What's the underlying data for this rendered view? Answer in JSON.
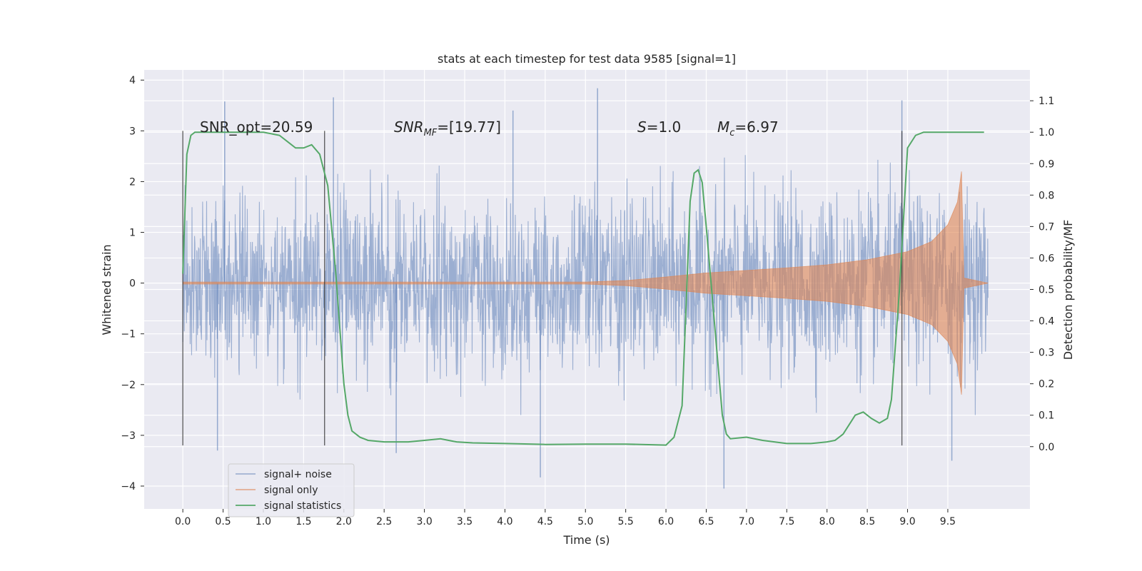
{
  "chart_data": {
    "type": "line",
    "title": "stats at each timestep for test data 9585 [signal=1]",
    "xlabel": "Time (s)",
    "ylabel_left": "Whitened strain",
    "ylabel_right": "Detection probability/MF",
    "xlim": [
      -0.48,
      10.52
    ],
    "ylim_left": [
      -4.45,
      4.2
    ],
    "ylim_right": [
      -0.198,
      1.198
    ],
    "x_ticks": [
      "0.0",
      "0.5",
      "1.0",
      "1.5",
      "2.0",
      "2.5",
      "3.0",
      "3.5",
      "4.0",
      "4.5",
      "5.0",
      "5.5",
      "6.0",
      "6.5",
      "7.0",
      "7.5",
      "8.0",
      "8.5",
      "9.0",
      "9.5"
    ],
    "y_left_ticks": [
      "4",
      "3",
      "2",
      "1",
      "0",
      "−1",
      "−2",
      "−3",
      "−4"
    ],
    "y_right_ticks": [
      "1.1",
      "1.0",
      "0.9",
      "0.8",
      "0.7",
      "0.6",
      "0.5",
      "0.4",
      "0.3",
      "0.2",
      "0.1",
      "0.0"
    ],
    "grid": true,
    "background": "#eaeaf2",
    "annotations": {
      "snr_opt_value": "SNR_opt=20.59",
      "snr_mf_value": "=[19.77]",
      "s_value": "=1.0",
      "mc_value": "=6.97"
    },
    "vertical_markers_x": [
      0.0,
      1.76,
      8.93
    ],
    "legend": {
      "placement": "lower-left",
      "entries": [
        "signal+ noise",
        "signal only",
        "signal statistics"
      ]
    },
    "series": [
      {
        "name": "signal+ noise",
        "axis": "left",
        "color": "#4c72b0",
        "sampling": "dense noisy strain around 0 from t=0 to t≈10, typical |y|≈1–2.5, spikes to about ±3.5; largest visible spikes",
        "spikes": [
          {
            "x": 0.52,
            "y": 3.58
          },
          {
            "x": 0.43,
            "y": -3.3
          },
          {
            "x": 1.87,
            "y": 3.66
          },
          {
            "x": 2.65,
            "y": -3.35
          },
          {
            "x": 4.1,
            "y": 3.4
          },
          {
            "x": 4.44,
            "y": -3.83
          },
          {
            "x": 5.15,
            "y": 3.84
          },
          {
            "x": 6.72,
            "y": -4.05
          },
          {
            "x": 8.93,
            "y": 3.6
          },
          {
            "x": 9.55,
            "y": -3.5
          }
        ]
      },
      {
        "name": "signal only",
        "axis": "left",
        "color": "#dd8452",
        "envelope": [
          {
            "x": 0.0,
            "y": 0.02
          },
          {
            "x": 5.0,
            "y": 0.02
          },
          {
            "x": 5.5,
            "y": 0.05
          },
          {
            "x": 6.0,
            "y": 0.12
          },
          {
            "x": 6.5,
            "y": 0.2
          },
          {
            "x": 7.0,
            "y": 0.25
          },
          {
            "x": 7.5,
            "y": 0.3
          },
          {
            "x": 8.0,
            "y": 0.36
          },
          {
            "x": 8.5,
            "y": 0.46
          },
          {
            "x": 9.0,
            "y": 0.62
          },
          {
            "x": 9.3,
            "y": 0.82
          },
          {
            "x": 9.5,
            "y": 1.15
          },
          {
            "x": 9.62,
            "y": 1.6
          },
          {
            "x": 9.67,
            "y": 2.2
          },
          {
            "x": 9.7,
            "y": 0.1
          },
          {
            "x": 10.0,
            "y": 0.0
          }
        ]
      },
      {
        "name": "signal statistics",
        "axis": "right",
        "color": "#55a868",
        "x": [
          0.0,
          0.05,
          0.1,
          0.15,
          0.2,
          0.3,
          0.5,
          0.8,
          1.0,
          1.2,
          1.3,
          1.4,
          1.5,
          1.6,
          1.7,
          1.8,
          1.9,
          2.0,
          2.05,
          2.1,
          2.2,
          2.3,
          2.5,
          2.8,
          3.0,
          3.2,
          3.4,
          3.6,
          4.0,
          4.5,
          5.0,
          5.5,
          6.0,
          6.1,
          6.2,
          6.25,
          6.3,
          6.35,
          6.4,
          6.45,
          6.5,
          6.6,
          6.7,
          6.75,
          6.8,
          7.0,
          7.2,
          7.5,
          7.8,
          8.0,
          8.1,
          8.2,
          8.3,
          8.35,
          8.45,
          8.55,
          8.65,
          8.75,
          8.8,
          8.9,
          9.0,
          9.1,
          9.2,
          9.5,
          9.95
        ],
        "y": [
          0.55,
          0.93,
          0.99,
          1.0,
          1.0,
          1.0,
          1.0,
          1.0,
          1.0,
          0.99,
          0.97,
          0.95,
          0.95,
          0.96,
          0.93,
          0.83,
          0.55,
          0.2,
          0.1,
          0.05,
          0.03,
          0.02,
          0.015,
          0.015,
          0.02,
          0.025,
          0.015,
          0.012,
          0.01,
          0.007,
          0.008,
          0.008,
          0.005,
          0.03,
          0.13,
          0.45,
          0.78,
          0.87,
          0.88,
          0.84,
          0.7,
          0.4,
          0.1,
          0.04,
          0.025,
          0.03,
          0.02,
          0.01,
          0.01,
          0.015,
          0.02,
          0.04,
          0.08,
          0.1,
          0.11,
          0.09,
          0.075,
          0.09,
          0.15,
          0.5,
          0.95,
          0.99,
          1.0,
          1.0,
          1.0
        ]
      }
    ]
  }
}
